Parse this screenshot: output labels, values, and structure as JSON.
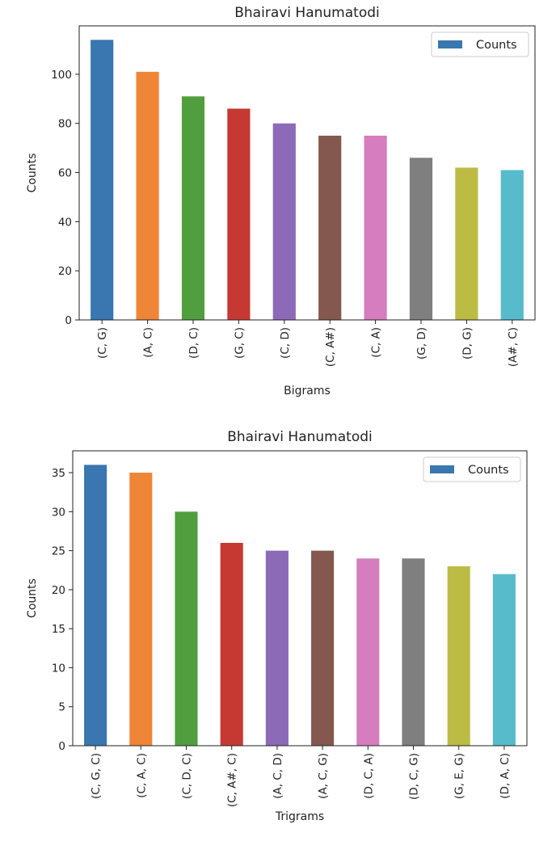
{
  "chart_data": [
    {
      "type": "bar",
      "title": "Bhairavi Hanumatodi",
      "xlabel": "Bigrams",
      "ylabel": "Counts",
      "categories": [
        "(C, G)",
        "(A, C)",
        "(D, C)",
        "(G, C)",
        "(C, D)",
        "(C, A#)",
        "(C, A)",
        "(G, D)",
        "(D, G)",
        "(A#, C)"
      ],
      "series": [
        {
          "name": "Counts",
          "values": [
            114,
            101,
            91,
            86,
            80,
            75,
            75,
            66,
            62,
            61
          ]
        }
      ],
      "ylim": [
        0,
        119.7
      ],
      "yticks": [
        0,
        20,
        40,
        60,
        80,
        100
      ],
      "legend": {
        "position": "top-right",
        "entries": [
          "Counts"
        ]
      },
      "grid": false,
      "colors": [
        "#3a76af",
        "#ef8536",
        "#519e3e",
        "#c53932",
        "#8d6ab8",
        "#84584e",
        "#d57dbf",
        "#7f7f7f",
        "#bcbc45",
        "#58bbcc"
      ]
    },
    {
      "type": "bar",
      "title": "Bhairavi Hanumatodi",
      "xlabel": "Trigrams",
      "ylabel": "Counts",
      "categories": [
        "(C, G, C)",
        "(C, A, C)",
        "(C, D, C)",
        "(C, A#, C)",
        "(A, C, D)",
        "(A, C, G)",
        "(D, C, A)",
        "(D, C, G)",
        "(G, E, G)",
        "(D, A, C)"
      ],
      "series": [
        {
          "name": "Counts",
          "values": [
            36,
            35,
            30,
            26,
            25,
            25,
            24,
            24,
            23,
            22
          ]
        }
      ],
      "ylim": [
        0,
        37.8
      ],
      "yticks": [
        0,
        5,
        10,
        15,
        20,
        25,
        30,
        35
      ],
      "legend": {
        "position": "top-right",
        "entries": [
          "Counts"
        ]
      },
      "grid": false,
      "colors": [
        "#3a76af",
        "#ef8536",
        "#519e3e",
        "#c53932",
        "#8d6ab8",
        "#84584e",
        "#d57dbf",
        "#7f7f7f",
        "#bcbc45",
        "#58bbcc"
      ]
    }
  ]
}
